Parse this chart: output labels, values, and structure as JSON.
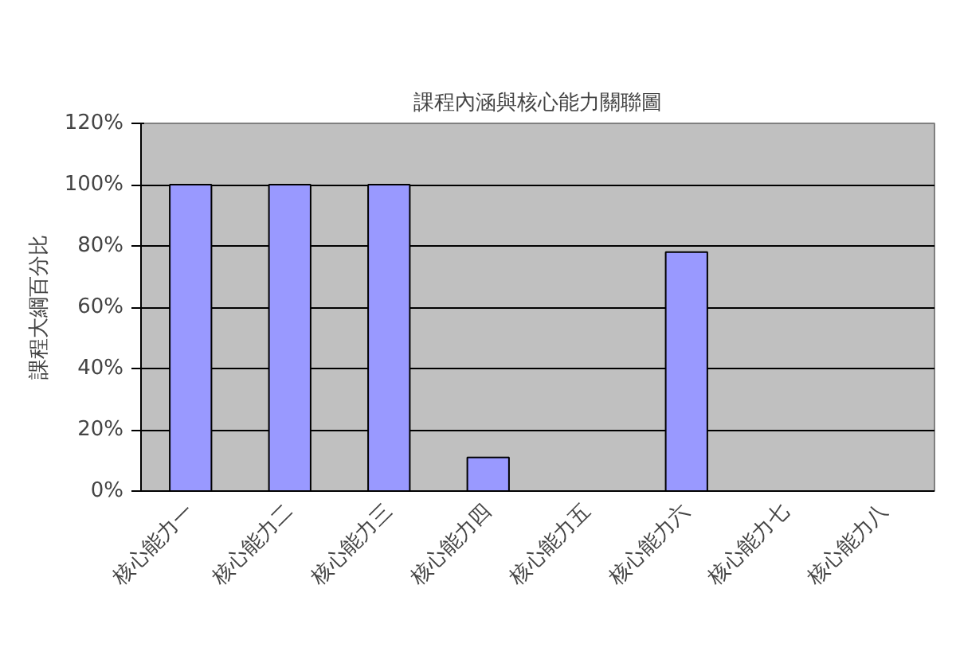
{
  "chart_data": {
    "type": "bar",
    "title": "課程內涵與核心能力關聯圖",
    "ylabel": "課程大綱百分比",
    "categories": [
      "核心能力一",
      "核心能力二",
      "核心能力三",
      "核心能力四",
      "核心能力五",
      "核心能力六",
      "核心能力七",
      "核心能力八"
    ],
    "values": [
      100,
      100,
      100,
      11,
      0,
      78,
      0,
      0
    ],
    "color": "#9999ff",
    "ylim": [
      0,
      120
    ],
    "yticks": [
      {
        "value": 0,
        "label": "0%"
      },
      {
        "value": 20,
        "label": "20%"
      },
      {
        "value": 40,
        "label": "40%"
      },
      {
        "value": 60,
        "label": "60%"
      },
      {
        "value": 80,
        "label": "80%"
      },
      {
        "value": 100,
        "label": "100%"
      },
      {
        "value": 120,
        "label": "120%"
      }
    ],
    "grid": "y"
  }
}
